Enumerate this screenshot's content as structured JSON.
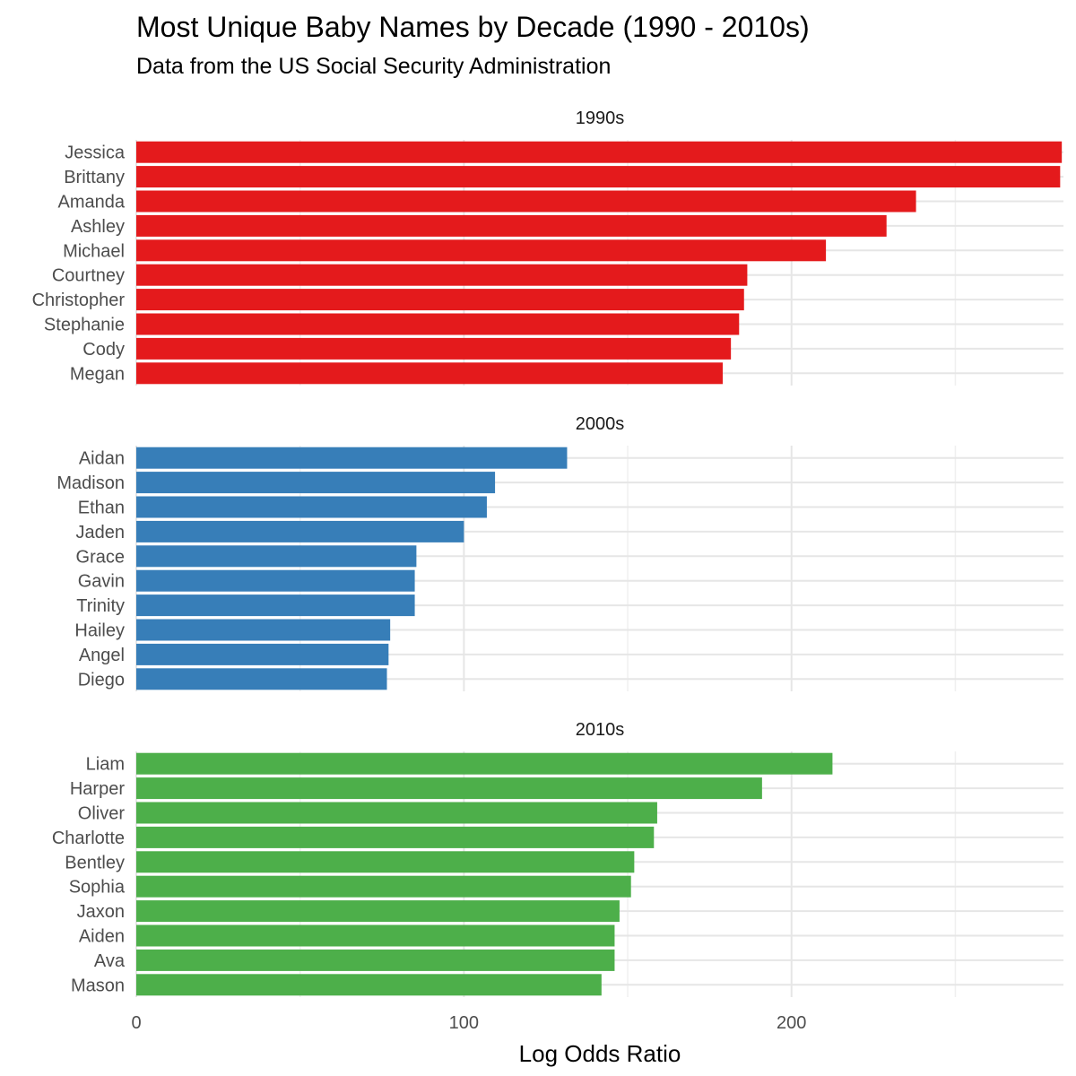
{
  "title": "Most Unique Baby Names by Decade (1990 - 2010s)",
  "subtitle": "Data from the US Social Security Administration",
  "chart_data": {
    "type": "bar",
    "orientation": "horizontal",
    "xlabel": "Log Odds Ratio",
    "ylabel": "",
    "xlim": [
      0,
      283
    ],
    "x_ticks": [
      0,
      100,
      200
    ],
    "grid": true,
    "legend": "none",
    "facets": [
      {
        "name": "1990s",
        "color": "#E41A1C",
        "categories": [
          "Jessica",
          "Brittany",
          "Amanda",
          "Ashley",
          "Michael",
          "Courtney",
          "Christopher",
          "Stephanie",
          "Cody",
          "Megan"
        ],
        "values": [
          282.5,
          282,
          238,
          229,
          210.5,
          186.5,
          185.5,
          184,
          181.5,
          179
        ]
      },
      {
        "name": "2000s",
        "color": "#377EB8",
        "categories": [
          "Aidan",
          "Madison",
          "Ethan",
          "Jaden",
          "Grace",
          "Gavin",
          "Trinity",
          "Hailey",
          "Angel",
          "Diego"
        ],
        "values": [
          131.5,
          109.5,
          107,
          100,
          85.5,
          85,
          85,
          77.5,
          77,
          76.5
        ]
      },
      {
        "name": "2010s",
        "color": "#4DAF4A",
        "categories": [
          "Liam",
          "Harper",
          "Oliver",
          "Charlotte",
          "Bentley",
          "Sophia",
          "Jaxon",
          "Aiden",
          "Ava",
          "Mason"
        ],
        "values": [
          212.5,
          191,
          159,
          158,
          152,
          151,
          147.5,
          146,
          146,
          142
        ]
      }
    ]
  }
}
